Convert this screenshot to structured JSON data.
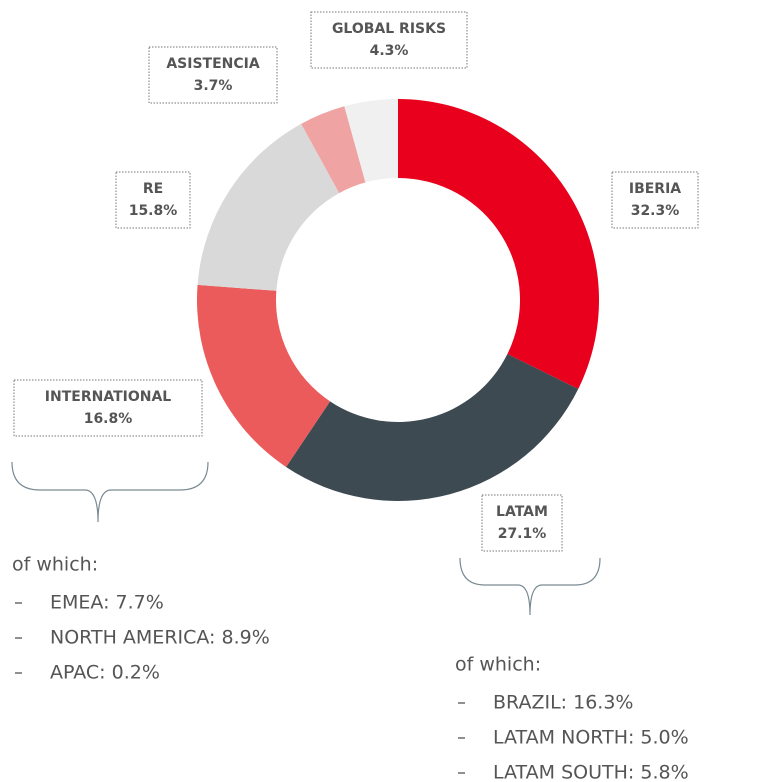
{
  "chart_data": {
    "type": "pie",
    "donut": true,
    "categories": [
      "IBERIA",
      "LATAM",
      "INTERNATIONAL",
      "RE",
      "ASISTENCIA",
      "GLOBAL RISKS"
    ],
    "values": [
      32.3,
      27.1,
      16.8,
      15.8,
      3.7,
      4.3
    ],
    "value_labels": [
      "32.3%",
      "27.1%",
      "16.8%",
      "15.8%",
      "3.7%",
      "4.3%"
    ],
    "colors": [
      "#e8001c",
      "#3d4a52",
      "#ec5b5b",
      "#d9d9d9",
      "#f0a3a3",
      "#f0f0f0"
    ],
    "breakdowns": [
      {
        "heading": "of which:",
        "items": [
          "EMEA: 7.7%",
          "NORTH AMERICA: 8.9%",
          "APAC: 0.2%"
        ]
      },
      {
        "heading": "of which:",
        "items": [
          "BRAZIL: 16.3%",
          "LATAM NORTH: 5.0%",
          "LATAM SOUTH: 5.8%"
        ]
      }
    ]
  }
}
